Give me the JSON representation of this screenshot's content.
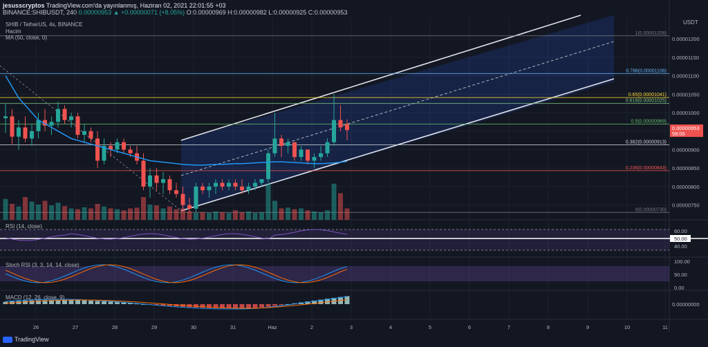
{
  "header": {
    "author": "jesusscryptos",
    "published": "TradingView.com'da yayınlanmış, Haziran 02, 2021 22:01:55 +03",
    "symbol": "BINANCE:SHIBUSDT, 240",
    "change": "0.00000953 ▲ +0.00000071 (+8.05%)",
    "ohlc": "O:0.00000969 H:0.00000982 L:0.00000925 C:0.00000953"
  },
  "legend": {
    "symbol_name": "SHIB / TetherUS, 4s, BINANCE",
    "volume": "Hacim",
    "ma": "MA (50, close, 0)",
    "rsi": "RSI (14, close)",
    "stoch": "Stoch RSI (3, 3, 14, 14, close)",
    "macd": "MACD (12, 26, close, 9)"
  },
  "price_axis": {
    "currency": "USDT",
    "ticks": [
      "0.00001200",
      "0.00001150",
      "0.00001100",
      "0.00001050",
      "0.00001000",
      "0.00000950",
      "0.00000900",
      "0.00000850",
      "0.00000800",
      "0.00000750"
    ],
    "last_price": "0.00000953",
    "countdown": "58:06"
  },
  "rsi_axis": [
    "60.00",
    "50.00",
    "40.00"
  ],
  "stoch_axis": [
    "100.00",
    "50.00",
    "0.00"
  ],
  "macd_axis": [
    "0.00000000"
  ],
  "time_axis": [
    "26",
    "27",
    "28",
    "29",
    "30",
    "31",
    "Haz",
    "2",
    "3",
    "4",
    "5",
    "6",
    "7",
    "8",
    "9",
    "10",
    "11"
  ],
  "fib_levels": [
    {
      "label": "1(0.00001208)",
      "value": 1.208e-05,
      "color": "#787b86"
    },
    {
      "label": "0.786(0.00001106)",
      "value": 1.106e-05,
      "color": "#64b5f6"
    },
    {
      "label": "0.65(0.00001041)",
      "value": 1.041e-05,
      "color": "#fdd835"
    },
    {
      "label": "0.618(0.00001025)",
      "value": 1.025e-05,
      "color": "#81c784"
    },
    {
      "label": "0.5(0.00000969)",
      "value": 9.69e-06,
      "color": "#66bb6a"
    },
    {
      "label": "0.382(0.00000913)",
      "value": 9.13e-06,
      "color": "#d1d4dc"
    },
    {
      "label": "0.236(0.00000843)",
      "value": 8.43e-06,
      "color": "#ef5350"
    },
    {
      "label": "0(0.00000730)",
      "value": 7.3e-06,
      "color": "#787b86"
    }
  ],
  "chart_data": {
    "type": "candlestick",
    "ylim": [
      7.1e-06,
      1.26e-05
    ],
    "candles": [
      [
        9.85e-06,
        1.025e-05,
        9.45e-06,
        9.9e-06
      ],
      [
        9.9e-06,
        1.01e-05,
        9.15e-06,
        9.35e-06
      ],
      [
        9.35e-06,
        9.8e-06,
        9e-06,
        9.6e-06
      ],
      [
        9.6e-06,
        9.9e-06,
        9.2e-06,
        9.3e-06
      ],
      [
        9.3e-06,
        9.7e-06,
        9.1e-06,
        9.5e-06
      ],
      [
        9.5e-06,
        1e-05,
        9.3e-06,
        9.8e-06
      ],
      [
        9.8e-06,
        1.01e-05,
        9.5e-06,
        9.65e-06
      ],
      [
        9.65e-06,
        9.9e-06,
        9.4e-06,
        9.75e-06
      ],
      [
        9.75e-06,
        1.03e-05,
        9.6e-06,
        1.01e-05
      ],
      [
        1.01e-05,
        1.02e-05,
        9.7e-06,
        9.8e-06
      ],
      [
        9.8e-06,
        1e-05,
        9.6e-06,
        9.9e-06
      ],
      [
        9.9e-06,
        1e-05,
        9.3e-06,
        9.4e-06
      ],
      [
        9.4e-06,
        9.7e-06,
        9.2e-06,
        9.5e-06
      ],
      [
        9.5e-06,
        9.6e-06,
        9.2e-06,
        9.3e-06
      ],
      [
        9.3e-06,
        9.5e-06,
        8.5e-06,
        8.7e-06
      ],
      [
        8.7e-06,
        9.3e-06,
        8.6e-06,
        9.1e-06
      ],
      [
        9.1e-06,
        9.2e-06,
        8.8e-06,
        9e-06
      ],
      [
        9e-06,
        9.3e-06,
        8.9e-06,
        9.2e-06
      ],
      [
        9.2e-06,
        9.3e-06,
        8.9e-06,
        9e-06
      ],
      [
        9e-06,
        9.1e-06,
        8.8e-06,
        8.9e-06
      ],
      [
        8.9e-06,
        9.1e-06,
        8.6e-06,
        8.7e-06
      ],
      [
        8.7e-06,
        8.9e-06,
        7.9e-06,
        8e-06
      ],
      [
        8e-06,
        8.5e-06,
        7.7e-06,
        8.3e-06
      ],
      [
        8.3e-06,
        8.5e-06,
        7.9e-06,
        8.1e-06
      ],
      [
        8.1e-06,
        8.4e-06,
        7.8e-06,
        8.2e-06
      ],
      [
        8.2e-06,
        8.3e-06,
        7.8e-06,
        7.9e-06
      ],
      [
        7.9e-06,
        8.1e-06,
        7.7e-06,
        7.8e-06
      ],
      [
        7.8e-06,
        8e-06,
        7.4e-06,
        7.5e-06
      ],
      [
        7.5e-06,
        7.7e-06,
        7.3e-06,
        7.4e-06
      ],
      [
        7.4e-06,
        8.1e-06,
        7.3e-06,
        8e-06
      ],
      [
        8e-06,
        8.1e-06,
        7.8e-06,
        7.9e-06
      ],
      [
        7.9e-06,
        8.1e-06,
        7.7e-06,
        8e-06
      ],
      [
        8e-06,
        8.2e-06,
        7.8e-06,
        8.1e-06
      ],
      [
        8.1e-06,
        8.2e-06,
        7.9e-06,
        8e-06
      ],
      [
        8e-06,
        8.2e-06,
        7.9e-06,
        8.1e-06
      ],
      [
        8.1e-06,
        8.2e-06,
        7.9e-06,
        8e-06
      ],
      [
        8e-06,
        8.2e-06,
        7.8e-06,
        7.9e-06
      ],
      [
        7.9e-06,
        8.1e-06,
        7.8e-06,
        8e-06
      ],
      [
        8e-06,
        8.2e-06,
        7.9e-06,
        8.1e-06
      ],
      [
        8.1e-06,
        8.2e-06,
        8e-06,
        8.2e-06
      ],
      [
        8.2e-06,
        9e-06,
        8.1e-06,
        8.9e-06
      ],
      [
        8.9e-06,
        1e-05,
        8.8e-06,
        9.3e-06
      ],
      [
        9.3e-06,
        9.4e-06,
        8.8e-06,
        9.1e-06
      ],
      [
        9.1e-06,
        9.3e-06,
        8.9e-06,
        9.2e-06
      ],
      [
        9.2e-06,
        9.2e-06,
        8.7e-06,
        8.8e-06
      ],
      [
        8.8e-06,
        9.1e-06,
        8.7e-06,
        9e-06
      ],
      [
        9e-06,
        9e-06,
        8.6e-06,
        8.7e-06
      ],
      [
        8.7e-06,
        8.9e-06,
        8.5e-06,
        8.8e-06
      ],
      [
        8.8e-06,
        9.1e-06,
        8.7e-06,
        8.9e-06
      ],
      [
        8.9e-06,
        9.3e-06,
        8.8e-06,
        9.2e-06
      ],
      [
        9.2e-06,
        1.05e-05,
        9.1e-06,
        9.8e-06
      ],
      [
        9.8e-06,
        1.02e-05,
        9.5e-06,
        9.6e-06
      ],
      [
        9.69e-06,
        9.82e-06,
        9.25e-06,
        9.53e-06
      ]
    ],
    "volume": [
      0.55,
      0.42,
      0.35,
      0.6,
      0.48,
      0.4,
      0.5,
      0.38,
      0.45,
      0.36,
      0.3,
      0.28,
      0.33,
      0.3,
      0.42,
      0.35,
      0.3,
      0.28,
      0.25,
      0.3,
      0.32,
      0.6,
      0.4,
      0.38,
      0.3,
      0.35,
      0.28,
      0.3,
      0.22,
      0.18,
      0.2,
      0.18,
      0.22,
      0.2,
      0.18,
      0.25,
      0.2,
      0.22,
      0.18,
      0.2,
      0.95,
      0.5,
      0.3,
      0.32,
      0.28,
      0.3,
      0.25,
      0.22,
      0.2,
      0.25,
      0.95,
      0.7,
      0.3
    ],
    "ma50": [
      1.1e-05,
      1.07e-05,
      1.04e-05,
      1.02e-05,
      1e-05,
      9.8e-06,
      9.7e-06,
      9.6e-06,
      9.5e-06,
      9.4e-06,
      9.3e-06,
      9.25e-06,
      9.2e-06,
      9.15e-06,
      9.1e-06,
      9.05e-06,
      9e-06,
      8.95e-06,
      8.9e-06,
      8.85e-06,
      8.8e-06,
      8.75e-06,
      8.7e-06,
      8.68e-06,
      8.66e-06,
      8.64e-06,
      8.62e-06,
      8.6e-06,
      8.59e-06,
      8.58e-06,
      8.58e-06,
      8.59e-06,
      8.6e-06,
      8.6e-06,
      8.61e-06,
      8.62e-06,
      8.62e-06,
      8.63e-06,
      8.64e-06,
      8.65e-06,
      8.66e-06,
      8.67e-06,
      8.67e-06,
      8.66e-06,
      8.65e-06,
      8.64e-06,
      8.63e-06,
      8.62e-06,
      8.62e-06,
      8.63e-06,
      8.64e-06,
      8.66e-06,
      8.68e-06
    ]
  }
}
